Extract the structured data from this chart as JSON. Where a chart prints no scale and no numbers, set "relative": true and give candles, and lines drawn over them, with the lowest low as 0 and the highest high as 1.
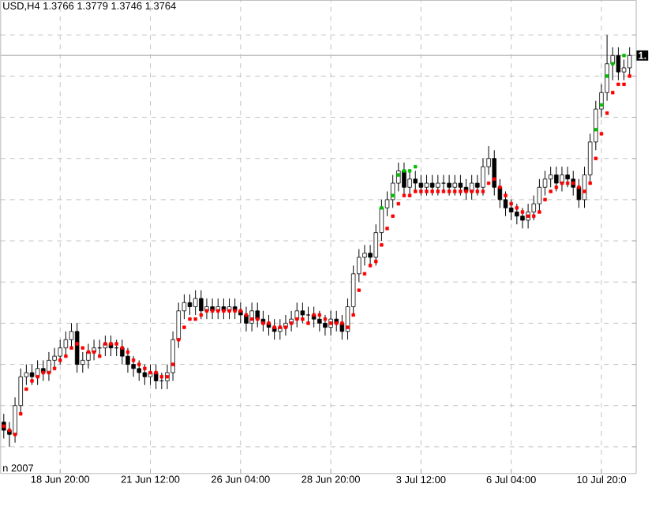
{
  "chart_data": {
    "type": "candlestick",
    "title": "USD,H4 1.3766 1.3779 1.3746 1.3764",
    "relative": true,
    "grid": true,
    "marker": "square",
    "categories": [
      null,
      null,
      null,
      null,
      null,
      null,
      null,
      null,
      null,
      null,
      "18 Jun 20:00",
      null,
      null,
      null,
      null,
      null,
      null,
      null,
      null,
      null,
      null,
      null,
      null,
      null,
      null,
      null,
      "21 Jun 12:00",
      null,
      null,
      null,
      null,
      null,
      null,
      null,
      null,
      null,
      null,
      null,
      null,
      null,
      null,
      null,
      "26 Jun 04:00",
      null,
      null,
      null,
      null,
      null,
      null,
      null,
      null,
      null,
      null,
      null,
      null,
      null,
      null,
      null,
      "28 Jun 20:00",
      null,
      null,
      null,
      null,
      null,
      null,
      null,
      null,
      null,
      null,
      null,
      null,
      null,
      null,
      null,
      "3 Jul 12:00",
      null,
      null,
      null,
      null,
      null,
      null,
      null,
      null,
      null,
      null,
      null,
      null,
      null,
      null,
      null,
      "6 Jul 04:00",
      null,
      null,
      null,
      null,
      null,
      null,
      null,
      null,
      null,
      null,
      null,
      null,
      null,
      null,
      null,
      "10 Jul 20:0",
      null,
      null,
      null,
      null,
      null
    ],
    "ohlc": [
      [
        0.06,
        0.08,
        0.02,
        0.04
      ],
      [
        0.04,
        0.06,
        0,
        0.03
      ],
      [
        0.03,
        0.12,
        0.01,
        0.1
      ],
      [
        0.1,
        0.19,
        0.08,
        0.17
      ],
      [
        0.17,
        0.2,
        0.15,
        0.18
      ],
      [
        0.18,
        0.2,
        0.15,
        0.17
      ],
      [
        0.17,
        0.21,
        0.15,
        0.19
      ],
      [
        0.19,
        0.21,
        0.16,
        0.18
      ],
      [
        0.18,
        0.23,
        0.16,
        0.21
      ],
      [
        0.21,
        0.24,
        0.19,
        0.22
      ],
      [
        0.22,
        0.26,
        0.2,
        0.24
      ],
      [
        0.24,
        0.28,
        0.22,
        0.26
      ],
      [
        0.26,
        0.3,
        0.24,
        0.28
      ],
      [
        0.28,
        0.3,
        0.18,
        0.2
      ],
      [
        0.2,
        0.23,
        0.18,
        0.21
      ],
      [
        0.21,
        0.25,
        0.19,
        0.23
      ],
      [
        0.23,
        0.26,
        0.21,
        0.24
      ],
      [
        0.24,
        0.26,
        0.22,
        0.24
      ],
      [
        0.24,
        0.27,
        0.22,
        0.25
      ],
      [
        0.25,
        0.27,
        0.22,
        0.24
      ],
      [
        0.24,
        0.26,
        0.22,
        0.24
      ],
      [
        0.24,
        0.26,
        0.2,
        0.22
      ],
      [
        0.22,
        0.24,
        0.18,
        0.2
      ],
      [
        0.2,
        0.22,
        0.17,
        0.19
      ],
      [
        0.19,
        0.21,
        0.16,
        0.18
      ],
      [
        0.18,
        0.2,
        0.15,
        0.17
      ],
      [
        0.17,
        0.2,
        0.15,
        0.18
      ],
      [
        0.18,
        0.2,
        0.14,
        0.16
      ],
      [
        0.16,
        0.18,
        0.14,
        0.16
      ],
      [
        0.16,
        0.2,
        0.14,
        0.18
      ],
      [
        0.18,
        0.28,
        0.16,
        0.26
      ],
      [
        0.26,
        0.35,
        0.24,
        0.33
      ],
      [
        0.33,
        0.37,
        0.31,
        0.35
      ],
      [
        0.35,
        0.37,
        0.32,
        0.34
      ],
      [
        0.34,
        0.38,
        0.32,
        0.36
      ],
      [
        0.36,
        0.38,
        0.31,
        0.33
      ],
      [
        0.33,
        0.36,
        0.31,
        0.34
      ],
      [
        0.34,
        0.36,
        0.31,
        0.33
      ],
      [
        0.33,
        0.36,
        0.31,
        0.34
      ],
      [
        0.34,
        0.36,
        0.31,
        0.33
      ],
      [
        0.33,
        0.36,
        0.31,
        0.34
      ],
      [
        0.34,
        0.36,
        0.31,
        0.33
      ],
      [
        0.33,
        0.35,
        0.3,
        0.32
      ],
      [
        0.32,
        0.34,
        0.28,
        0.3
      ],
      [
        0.3,
        0.35,
        0.28,
        0.33
      ],
      [
        0.33,
        0.35,
        0.29,
        0.31
      ],
      [
        0.31,
        0.33,
        0.28,
        0.3
      ],
      [
        0.3,
        0.32,
        0.27,
        0.29
      ],
      [
        0.29,
        0.31,
        0.26,
        0.28
      ],
      [
        0.28,
        0.31,
        0.26,
        0.29
      ],
      [
        0.29,
        0.32,
        0.27,
        0.3
      ],
      [
        0.3,
        0.33,
        0.28,
        0.31
      ],
      [
        0.31,
        0.35,
        0.29,
        0.33
      ],
      [
        0.33,
        0.35,
        0.3,
        0.32
      ],
      [
        0.32,
        0.34,
        0.3,
        0.32
      ],
      [
        0.32,
        0.34,
        0.29,
        0.31
      ],
      [
        0.31,
        0.33,
        0.28,
        0.3
      ],
      [
        0.3,
        0.32,
        0.27,
        0.29
      ],
      [
        0.29,
        0.33,
        0.27,
        0.31
      ],
      [
        0.31,
        0.33,
        0.28,
        0.3
      ],
      [
        0.3,
        0.32,
        0.26,
        0.28
      ],
      [
        0.28,
        0.36,
        0.26,
        0.34
      ],
      [
        0.34,
        0.44,
        0.32,
        0.42
      ],
      [
        0.42,
        0.48,
        0.4,
        0.46
      ],
      [
        0.46,
        0.49,
        0.44,
        0.47
      ],
      [
        0.47,
        0.49,
        0.44,
        0.46
      ],
      [
        0.46,
        0.54,
        0.44,
        0.52
      ],
      [
        0.52,
        0.6,
        0.5,
        0.58
      ],
      [
        0.58,
        0.62,
        0.56,
        0.6
      ],
      [
        0.6,
        0.66,
        0.58,
        0.64
      ],
      [
        0.64,
        0.69,
        0.62,
        0.67
      ],
      [
        0.67,
        0.69,
        0.61,
        0.63
      ],
      [
        0.63,
        0.67,
        0.61,
        0.65
      ],
      [
        0.65,
        0.67,
        0.62,
        0.64
      ],
      [
        0.64,
        0.66,
        0.61,
        0.63
      ],
      [
        0.63,
        0.66,
        0.61,
        0.64
      ],
      [
        0.64,
        0.66,
        0.61,
        0.63
      ],
      [
        0.63,
        0.66,
        0.61,
        0.64
      ],
      [
        0.64,
        0.66,
        0.62,
        0.64
      ],
      [
        0.64,
        0.66,
        0.61,
        0.63
      ],
      [
        0.63,
        0.66,
        0.61,
        0.64
      ],
      [
        0.64,
        0.66,
        0.61,
        0.63
      ],
      [
        0.63,
        0.65,
        0.6,
        0.62
      ],
      [
        0.62,
        0.66,
        0.6,
        0.64
      ],
      [
        0.64,
        0.66,
        0.61,
        0.63
      ],
      [
        0.63,
        0.7,
        0.61,
        0.68
      ],
      [
        0.68,
        0.73,
        0.66,
        0.7
      ],
      [
        0.7,
        0.72,
        0.61,
        0.63
      ],
      [
        0.63,
        0.65,
        0.58,
        0.6
      ],
      [
        0.6,
        0.62,
        0.56,
        0.58
      ],
      [
        0.58,
        0.6,
        0.55,
        0.57
      ],
      [
        0.57,
        0.59,
        0.54,
        0.56
      ],
      [
        0.56,
        0.58,
        0.53,
        0.55
      ],
      [
        0.55,
        0.59,
        0.53,
        0.57
      ],
      [
        0.57,
        0.61,
        0.55,
        0.59
      ],
      [
        0.59,
        0.65,
        0.57,
        0.63
      ],
      [
        0.63,
        0.67,
        0.61,
        0.65
      ],
      [
        0.65,
        0.68,
        0.63,
        0.66
      ],
      [
        0.66,
        0.68,
        0.62,
        0.64
      ],
      [
        0.64,
        0.68,
        0.62,
        0.66
      ],
      [
        0.66,
        0.68,
        0.63,
        0.65
      ],
      [
        0.65,
        0.67,
        0.61,
        0.63
      ],
      [
        0.63,
        0.65,
        0.58,
        0.6
      ],
      [
        0.6,
        0.68,
        0.58,
        0.66
      ],
      [
        0.66,
        0.76,
        0.64,
        0.74
      ],
      [
        0.74,
        0.84,
        0.72,
        0.82
      ],
      [
        0.82,
        0.88,
        0.8,
        0.86
      ],
      [
        0.86,
        1,
        0.84,
        0.93
      ],
      [
        0.93,
        0.97,
        0.89,
        0.95
      ],
      [
        0.95,
        0.97,
        0.89,
        0.91
      ],
      [
        0.91,
        0.94,
        0.89,
        0.92
      ],
      [
        0.92,
        0.97,
        0.9,
        0.95
      ]
    ],
    "series": [
      {
        "type": "scatter",
        "color": "#ff0000",
        "values": [
          0.05,
          0.04,
          0.03,
          0.08,
          0.14,
          0.16,
          0.17,
          0.18,
          0.18,
          0.19,
          0.21,
          0.22,
          0.24,
          0.25,
          0.24,
          0.23,
          0.23,
          0.22,
          0.25,
          0.25,
          0.25,
          0.24,
          0.23,
          0.21,
          0.2,
          0.19,
          0.18,
          0.18,
          0.17,
          0.17,
          0.2,
          0.26,
          0.29,
          0.31,
          0.31,
          0.32,
          0.33,
          0.33,
          0.33,
          0.33,
          0.33,
          0.33,
          0.33,
          0.32,
          0.31,
          0.31,
          0.3,
          0.3,
          0.29,
          0.29,
          0.29,
          0.3,
          0.31,
          0.31,
          0.3,
          0.32,
          0.32,
          0.31,
          0.3,
          0.3,
          0.3,
          0.29,
          0.32,
          0.38,
          0.42,
          0.44,
          0.45,
          0.49,
          0.53,
          0.56,
          0.59,
          0.61,
          0.61,
          0.62,
          0.62,
          0.62,
          0.62,
          0.62,
          0.62,
          0.62,
          0.62,
          0.62,
          0.62,
          0.62,
          0.62,
          0.62,
          0.64,
          0.65,
          0.63,
          0.61,
          0.59,
          0.58,
          0.57,
          0.56,
          0.56,
          0.57,
          0.6,
          0.62,
          0.63,
          0.64,
          0.64,
          0.64,
          0.63,
          0.62,
          0.64,
          0.7,
          0.76,
          0.81,
          0.86,
          0.88,
          0.88,
          0.9
        ]
      },
      {
        "type": "scatter",
        "color": "#00c000",
        "values": [
          null,
          null,
          null,
          null,
          null,
          null,
          null,
          null,
          null,
          null,
          null,
          null,
          null,
          null,
          null,
          null,
          null,
          null,
          null,
          null,
          null,
          null,
          null,
          null,
          null,
          null,
          null,
          null,
          null,
          null,
          null,
          null,
          null,
          null,
          null,
          null,
          null,
          null,
          null,
          null,
          null,
          null,
          null,
          null,
          null,
          null,
          null,
          null,
          null,
          null,
          null,
          null,
          null,
          null,
          null,
          null,
          null,
          null,
          null,
          null,
          null,
          null,
          null,
          null,
          null,
          null,
          null,
          0.58,
          null,
          0.61,
          0.66,
          0.67,
          0.67,
          0.68,
          null,
          null,
          null,
          null,
          null,
          null,
          null,
          null,
          null,
          null,
          null,
          null,
          null,
          null,
          null,
          null,
          null,
          null,
          null,
          null,
          null,
          null,
          null,
          null,
          null,
          null,
          null,
          null,
          null,
          null,
          null,
          0.77,
          0.83,
          0.9,
          0.93,
          null,
          0.95,
          null
        ]
      }
    ],
    "ref_lines": [
      {
        "axis": "y",
        "value": 0.95,
        "label": "1.",
        "color": "#c0c0c0"
      }
    ],
    "annotations": [
      "n 2007"
    ]
  }
}
